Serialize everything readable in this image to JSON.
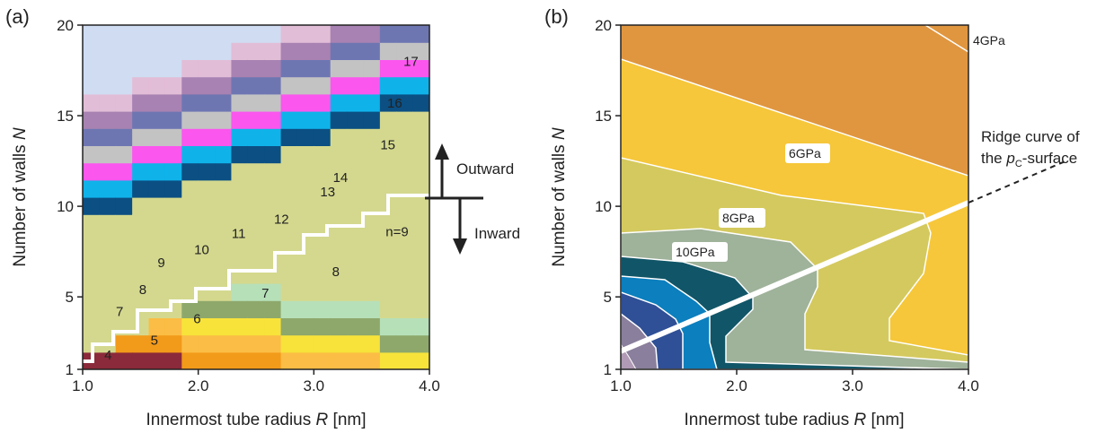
{
  "chart_data": [
    {
      "type": "heatmap",
      "panel_label": "(a)",
      "xlabel_prefix": "Innermost tube radius ",
      "xlabel_var": "R",
      "xlabel_unit": " [nm]",
      "ylabel_prefix": "Number of walls  ",
      "ylabel_var": "N",
      "xlim": [
        1.0,
        4.0
      ],
      "ylim": [
        1,
        20
      ],
      "x_ticks": [
        "1.0",
        "2.0",
        "3.0",
        "4.0"
      ],
      "y_ticks": [
        "1",
        "5",
        "10",
        "15",
        "20"
      ],
      "region_labels": [
        {
          "text": "4",
          "x": 1.22,
          "y": 1.8
        },
        {
          "text": "5",
          "x": 1.62,
          "y": 2.6
        },
        {
          "text": "7",
          "x": 1.32,
          "y": 4.2
        },
        {
          "text": "6",
          "x": 1.99,
          "y": 3.8
        },
        {
          "text": "8",
          "x": 1.52,
          "y": 5.4
        },
        {
          "text": "7",
          "x": 2.58,
          "y": 5.2
        },
        {
          "text": "9",
          "x": 1.68,
          "y": 6.9
        },
        {
          "text": "10",
          "x": 2.03,
          "y": 7.6
        },
        {
          "text": "8",
          "x": 3.19,
          "y": 6.4
        },
        {
          "text": "11",
          "x": 2.35,
          "y": 8.5
        },
        {
          "text": "n=9",
          "x": 3.72,
          "y": 8.6
        },
        {
          "text": "12",
          "x": 2.72,
          "y": 9.3
        },
        {
          "text": "13",
          "x": 3.12,
          "y": 10.8
        },
        {
          "text": "14",
          "x": 3.23,
          "y": 11.6
        },
        {
          "text": "15",
          "x": 3.64,
          "y": 13.4
        },
        {
          "text": "16",
          "x": 3.7,
          "y": 15.7
        },
        {
          "text": "17",
          "x": 3.84,
          "y": 18.0
        }
      ],
      "annotations": {
        "outward": "Outward",
        "inward": "Inward"
      }
    },
    {
      "type": "contour",
      "panel_label": "(b)",
      "xlabel_prefix": "Innermost tube radius ",
      "xlabel_var": "R",
      "xlabel_unit": " [nm]",
      "ylabel_prefix": "Number of walls  ",
      "ylabel_var": "N",
      "xlim": [
        1.0,
        4.0
      ],
      "ylim": [
        1,
        20
      ],
      "x_ticks": [
        "1.0",
        "2.0",
        "3.0",
        "4.0"
      ],
      "y_ticks": [
        "1",
        "5",
        "10",
        "15",
        "20"
      ],
      "contour_labels": [
        "4GPa",
        "6GPa",
        "8GPa",
        "10GPa"
      ],
      "ridge_line": {
        "start": [
          1.0,
          2.0
        ],
        "end": [
          4.0,
          10.2
        ]
      },
      "ridge_text": {
        "line1": "Ridge curve of",
        "line2_prefix": "the ",
        "p": "p",
        "sub": "C",
        "line2_suffix": "-surface"
      }
    }
  ],
  "colors": {
    "c4": "#8b2a3a",
    "c5": "#f29a1a",
    "c6": "#fbbd45",
    "c7": "#f7e33a",
    "c8": "#8ea86c",
    "c9": "#b6e0b8",
    "c10": "#d4d88e",
    "c11": "#0b4f83",
    "c12": "#0fb3ea",
    "c13": "#fb56ee",
    "c14": "#c3c3c3",
    "c15": "#6e76b2",
    "c16": "#a882b2",
    "c17": "#e2bdd7",
    "c18": "#cfdcf2",
    "band_4": "#e0963f",
    "band_6": "#f6c73a",
    "band_8": "#d4c95e",
    "band_10": "#9fb29a",
    "band_12": "#115668",
    "band_14": "#0c7fbe",
    "band_16": "#2f4f96",
    "band_18": "#8a7f9c"
  }
}
